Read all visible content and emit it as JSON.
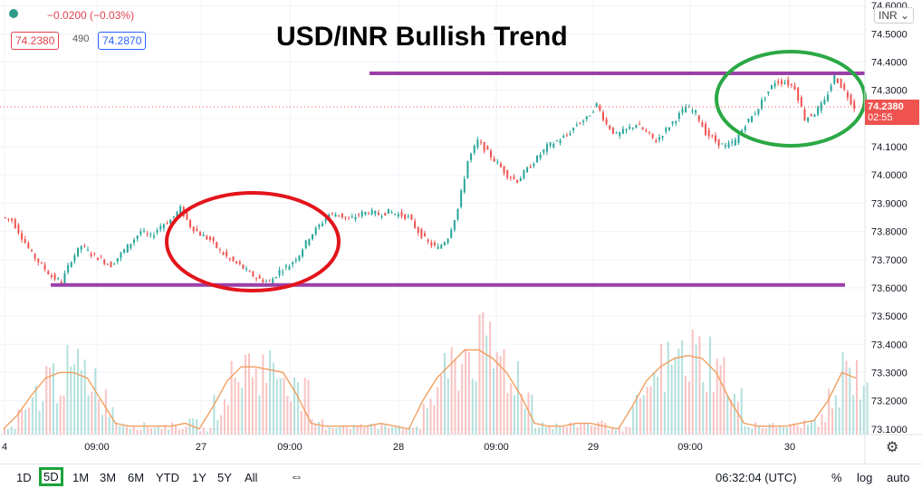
{
  "header": {
    "change": "−0.0200 (−0.03%)",
    "bid": "74.2380",
    "volume": "490",
    "ask": "74.2870",
    "currency_select": "INR"
  },
  "title": "USD/INR Bullish Trend",
  "price_tag": {
    "price": "74.2380",
    "countdown": "02:55"
  },
  "toolbar": {
    "timeframes": [
      "1D",
      "5D",
      "1M",
      "3M",
      "6M",
      "YTD",
      "1Y",
      "5Y",
      "All"
    ],
    "selected": "5D",
    "clock": "06:32:04 (UTC)",
    "percent": "%",
    "log": "log",
    "auto": "auto"
  },
  "colors": {
    "up": "#26a69a",
    "down": "#ef5350",
    "volume_ma": "#f0a060",
    "resistance": "#9c3fa8",
    "support": "#9c3fa8",
    "red_circle": "#e3141b",
    "green_circle": "#2aa845"
  },
  "chart_data": {
    "type": "candlestick",
    "x_ticks": [
      "4",
      "09:00",
      "27",
      "09:00",
      "28",
      "09:00",
      "29",
      "09:00",
      "30"
    ],
    "y_ticks": [
      "74.6000",
      "74.5000",
      "74.4000",
      "74.3000",
      "74.2000",
      "74.1000",
      "74.0000",
      "73.9000",
      "73.8000",
      "73.7000",
      "73.6000",
      "73.5000",
      "73.4000",
      "73.3000",
      "73.2000",
      "73.1000"
    ],
    "ylim": [
      73.08,
      74.62
    ],
    "series": [
      {
        "values": [
          73.84,
          73.78,
          73.72,
          73.68,
          73.64,
          73.62,
          73.7,
          73.75,
          73.72,
          73.7,
          73.68,
          73.72,
          73.76,
          73.8,
          73.78,
          73.82,
          73.84,
          73.88,
          73.82,
          73.79,
          73.77,
          73.73,
          73.7,
          73.68,
          73.65,
          73.63,
          73.62,
          73.66,
          73.68,
          73.72,
          73.78,
          73.82,
          73.86,
          73.86,
          73.84,
          73.86,
          73.87,
          73.86,
          73.87,
          73.86,
          73.85,
          73.8,
          73.76,
          73.74,
          73.78,
          73.88,
          74.05,
          74.12,
          74.08,
          74.04,
          74.0,
          73.98,
          74.02,
          74.06,
          74.1,
          74.12,
          74.14,
          74.18,
          74.2,
          74.25,
          74.18,
          74.14,
          74.16,
          74.18,
          74.15,
          74.12,
          74.16,
          74.2,
          74.24,
          74.22,
          74.15,
          74.12,
          74.1,
          74.12,
          74.18,
          74.22,
          74.28,
          74.33,
          74.33,
          74.31,
          74.2,
          74.22,
          74.26,
          74.35,
          74.3,
          74.24
        ]
      },
      {
        "values": [
          73.1,
          73.15,
          73.22,
          73.28,
          73.3,
          73.3,
          73.28,
          73.2,
          73.12,
          73.11,
          73.11,
          73.11,
          73.11,
          73.12,
          73.1,
          73.18,
          73.27,
          73.32,
          73.32,
          73.31,
          73.3,
          73.22,
          73.12,
          73.11,
          73.11,
          73.11,
          73.11,
          73.12,
          73.11,
          73.1,
          73.2,
          73.28,
          73.33,
          73.38,
          73.38,
          73.35,
          73.3,
          73.22,
          73.12,
          73.11,
          73.11,
          73.12,
          73.12,
          73.11,
          73.1,
          73.18,
          73.27,
          73.32,
          73.35,
          73.36,
          73.35,
          73.3,
          73.2,
          73.12,
          73.11,
          73.11,
          73.11,
          73.12,
          73.13,
          73.2,
          73.3,
          73.28
        ]
      }
    ],
    "annotations": [
      {
        "type": "hline",
        "y": 74.36,
        "color": "#9c3fa8"
      },
      {
        "type": "hline",
        "y": 73.61,
        "color": "#9c3fa8"
      },
      {
        "type": "ellipse",
        "color": "#e3141b"
      },
      {
        "type": "ellipse",
        "color": "#2aa845"
      }
    ]
  }
}
